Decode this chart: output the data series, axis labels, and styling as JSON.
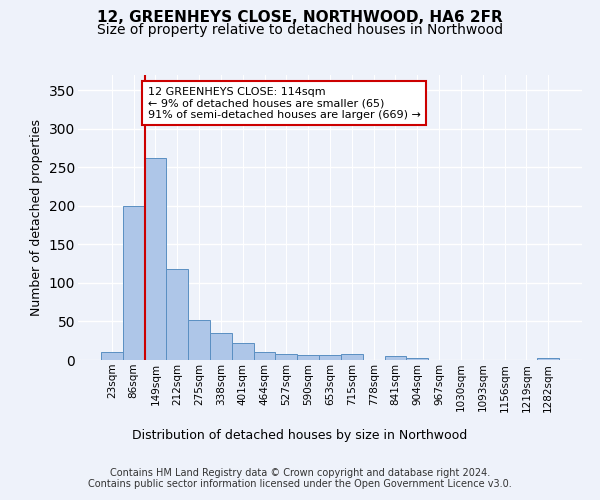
{
  "title": "12, GREENHEYS CLOSE, NORTHWOOD, HA6 2FR",
  "subtitle": "Size of property relative to detached houses in Northwood",
  "xlabel": "Distribution of detached houses by size in Northwood",
  "ylabel": "Number of detached properties",
  "categories": [
    "23sqm",
    "86sqm",
    "149sqm",
    "212sqm",
    "275sqm",
    "338sqm",
    "401sqm",
    "464sqm",
    "527sqm",
    "590sqm",
    "653sqm",
    "715sqm",
    "778sqm",
    "841sqm",
    "904sqm",
    "967sqm",
    "1030sqm",
    "1093sqm",
    "1156sqm",
    "1219sqm",
    "1282sqm"
  ],
  "values": [
    10,
    200,
    262,
    118,
    52,
    35,
    22,
    10,
    8,
    6,
    7,
    8,
    0,
    5,
    3,
    0,
    0,
    0,
    0,
    0,
    3
  ],
  "bar_color": "#aec6e8",
  "bar_edge_color": "#5a8fc2",
  "vline_x_index": 1,
  "vline_color": "#cc0000",
  "annotation_text": "12 GREENHEYS CLOSE: 114sqm\n← 9% of detached houses are smaller (65)\n91% of semi-detached houses are larger (669) →",
  "annotation_box_color": "#ffffff",
  "annotation_box_edge": "#cc0000",
  "ylim": [
    0,
    370
  ],
  "yticks": [
    0,
    50,
    100,
    150,
    200,
    250,
    300,
    350
  ],
  "background_color": "#eef2fa",
  "plot_background": "#eef2fa",
  "footer_line1": "Contains HM Land Registry data © Crown copyright and database right 2024.",
  "footer_line2": "Contains public sector information licensed under the Open Government Licence v3.0.",
  "title_fontsize": 11,
  "subtitle_fontsize": 10,
  "xlabel_fontsize": 9,
  "ylabel_fontsize": 9,
  "tick_fontsize": 7.5,
  "footer_fontsize": 7,
  "annot_fontsize": 8
}
